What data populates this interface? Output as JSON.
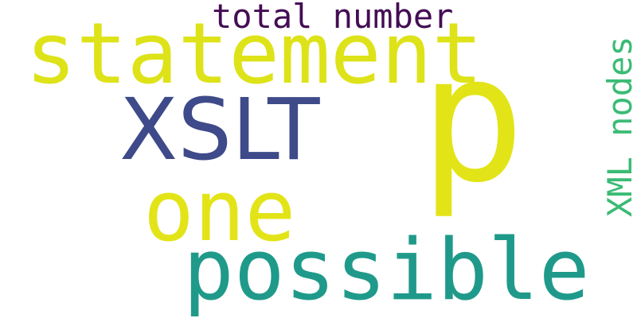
{
  "words": [
    {
      "text": "p",
      "color": "#e2e418"
    },
    {
      "text": "statement",
      "color": "#dde318"
    },
    {
      "text": "total number",
      "color": "#440d54"
    },
    {
      "text": "XSLT",
      "color": "#3e4a89"
    },
    {
      "text": "one",
      "color": "#e3e418"
    },
    {
      "text": "possible",
      "color": "#1f9a8a"
    },
    {
      "text": "XML nodes",
      "color": "#3bbb75"
    }
  ]
}
